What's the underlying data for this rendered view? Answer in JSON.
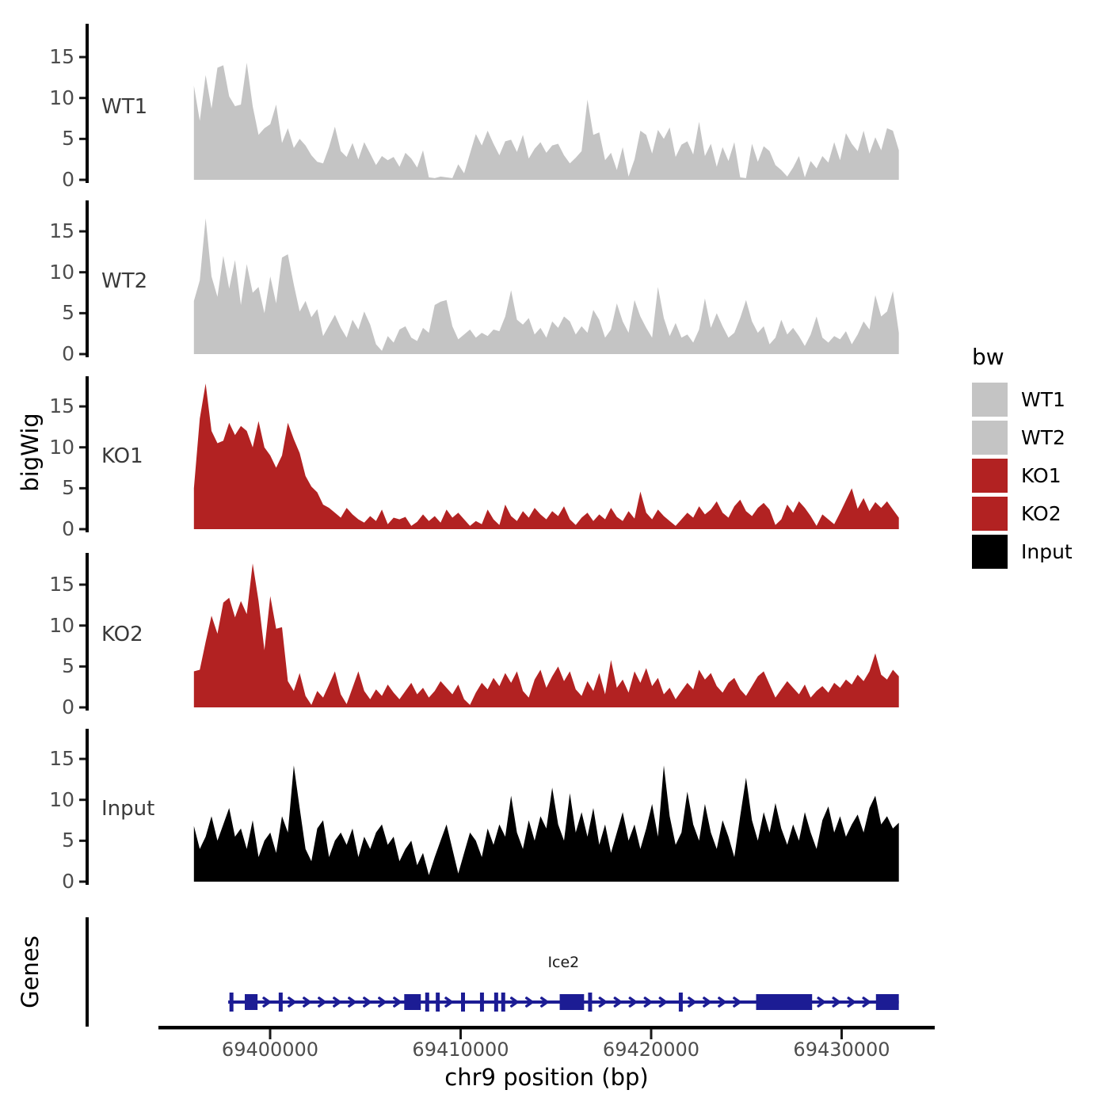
{
  "figure": {
    "y_axis_title": "bigWig",
    "genes_axis_title": "Genes",
    "x_axis_title": "chr9 position (bp)",
    "gene_label": "Ice2"
  },
  "legend": {
    "title": "bw",
    "entries": [
      {
        "label": "WT1",
        "color": "#C4C4C4"
      },
      {
        "label": "WT2",
        "color": "#C4C4C4"
      },
      {
        "label": "KO1",
        "color": "#B22222"
      },
      {
        "label": "KO2",
        "color": "#B22222"
      },
      {
        "label": "Input",
        "color": "#000000"
      }
    ]
  },
  "colors": {
    "gene_model": "#1C1C94",
    "axis_line": "#000000",
    "axis_text": "#4d4d4d",
    "track_label": "#3a3a3a"
  },
  "chart_data": {
    "type": "area",
    "title": "",
    "xlabel": "chr9 position (bp)",
    "ylabel": "bigWig",
    "x_domain_bp": [
      69396000,
      69433000
    ],
    "x_ticks_bp": [
      69400000,
      69410000,
      69420000,
      69430000
    ],
    "x_tick_labels": [
      "69400000",
      "69410000",
      "69420000",
      "69430000"
    ],
    "y_ticks": [
      0,
      5,
      10,
      15
    ],
    "ylim": [
      0,
      19
    ],
    "grid": false,
    "legend_position": "right",
    "tracks": [
      {
        "name": "WT1",
        "color": "#C4C4C4",
        "values": [
          11.5,
          7.2,
          12.8,
          8.7,
          13.7,
          14.0,
          10.2,
          9.0,
          9.2,
          14.3,
          9.0,
          5.5,
          6.3,
          6.8,
          9.2,
          4.5,
          6.3,
          3.9,
          5.0,
          4.2,
          3.0,
          2.2,
          2.0,
          4.0,
          6.5,
          3.5,
          2.8,
          4.5,
          2.5,
          4.6,
          3.2,
          1.8,
          2.9,
          2.4,
          2.8,
          1.6,
          3.3,
          2.6,
          1.5,
          3.6,
          0.3,
          0.2,
          0.4,
          0.3,
          0.2,
          1.9,
          0.8,
          3.2,
          5.6,
          4.2,
          6.0,
          4.4,
          3.0,
          4.7,
          4.9,
          3.4,
          5.5,
          2.6,
          3.8,
          4.6,
          3.3,
          4.2,
          4.4,
          3.0,
          2.0,
          2.7,
          3.5,
          9.8,
          5.5,
          5.8,
          2.4,
          3.3,
          1.2,
          4.0,
          0.4,
          2.5,
          6.0,
          5.5,
          3.2,
          6.1,
          5.0,
          6.4,
          2.8,
          4.3,
          4.7,
          3.1,
          7.1,
          2.9,
          4.4,
          1.6,
          4.0,
          2.3,
          4.6,
          0.3,
          0.2,
          4.4,
          2.2,
          4.1,
          3.5,
          1.8,
          1.2,
          0.4,
          1.5,
          2.9,
          0.3,
          2.3,
          1.4,
          2.9,
          2.1,
          4.6,
          2.4,
          5.7,
          4.4,
          3.5,
          6.0,
          3.2,
          5.2,
          3.6,
          6.3,
          6.0,
          3.6
        ]
      },
      {
        "name": "WT2",
        "color": "#C4C4C4",
        "values": [
          6.5,
          9.0,
          16.6,
          9.5,
          7.0,
          12.0,
          8.0,
          11.5,
          6.0,
          11.0,
          7.5,
          8.2,
          5.0,
          9.5,
          6.2,
          11.8,
          12.2,
          8.5,
          5.2,
          6.5,
          4.5,
          5.5,
          2.2,
          3.5,
          4.8,
          3.2,
          2.0,
          4.2,
          3.0,
          5.2,
          3.6,
          1.2,
          0.4,
          2.2,
          1.4,
          3.0,
          3.4,
          2.0,
          1.6,
          3.2,
          2.6,
          6.0,
          6.4,
          6.6,
          3.4,
          1.8,
          2.4,
          3.0,
          2.0,
          2.6,
          2.2,
          3.0,
          2.8,
          4.6,
          7.8,
          4.2,
          3.6,
          4.4,
          2.4,
          3.2,
          2.0,
          4.0,
          3.2,
          4.6,
          4.0,
          2.4,
          3.4,
          2.6,
          5.4,
          4.2,
          2.0,
          3.0,
          6.2,
          4.0,
          2.6,
          6.6,
          4.6,
          3.2,
          2.0,
          8.2,
          4.4,
          2.2,
          3.8,
          2.0,
          2.4,
          1.4,
          3.0,
          6.8,
          3.2,
          5.0,
          3.4,
          2.0,
          2.6,
          4.4,
          6.6,
          4.0,
          2.6,
          3.4,
          1.2,
          2.0,
          4.2,
          2.4,
          3.2,
          2.2,
          1.0,
          2.4,
          4.6,
          2.0,
          1.4,
          2.2,
          1.8,
          2.8,
          1.2,
          2.4,
          4.0,
          3.0,
          7.2,
          4.6,
          5.2,
          7.7,
          2.6
        ]
      },
      {
        "name": "KO1",
        "color": "#B22222",
        "values": [
          5.0,
          13.5,
          17.8,
          12.0,
          10.5,
          10.8,
          13.0,
          11.5,
          12.6,
          12.0,
          10.0,
          13.2,
          10.0,
          9.0,
          7.5,
          9.0,
          13.0,
          11.0,
          9.3,
          6.5,
          5.2,
          4.5,
          3.0,
          2.6,
          2.0,
          1.4,
          2.6,
          1.8,
          1.2,
          0.8,
          1.6,
          1.0,
          2.4,
          0.6,
          1.4,
          1.2,
          1.5,
          0.4,
          0.9,
          1.8,
          1.0,
          1.6,
          0.8,
          2.4,
          1.4,
          2.0,
          1.2,
          0.4,
          1.0,
          0.6,
          2.4,
          1.2,
          0.5,
          3.0,
          1.6,
          1.0,
          2.2,
          1.4,
          2.6,
          1.8,
          1.2,
          2.2,
          1.6,
          2.8,
          1.2,
          0.5,
          1.4,
          2.0,
          1.0,
          1.8,
          1.2,
          2.6,
          1.5,
          1.0,
          2.2,
          1.3,
          4.6,
          2.0,
          1.2,
          2.4,
          1.6,
          1.0,
          0.4,
          1.2,
          2.0,
          1.4,
          2.8,
          1.8,
          2.4,
          3.4,
          2.0,
          1.4,
          2.8,
          3.6,
          2.2,
          1.6,
          2.6,
          3.2,
          2.4,
          0.5,
          1.2,
          3.0,
          2.0,
          3.4,
          2.6,
          1.6,
          0.4,
          1.8,
          1.2,
          0.6,
          2.0,
          3.5,
          5.0,
          2.5,
          3.8,
          2.2,
          3.3,
          2.6,
          3.4,
          2.4,
          1.4
        ]
      },
      {
        "name": "KO2",
        "color": "#B22222",
        "values": [
          4.4,
          4.6,
          8.0,
          11.2,
          9.0,
          12.8,
          13.4,
          11.0,
          13.0,
          11.4,
          17.6,
          13.0,
          7.0,
          13.6,
          9.6,
          9.8,
          3.2,
          2.0,
          4.2,
          1.4,
          0.3,
          2.0,
          1.2,
          2.8,
          4.4,
          1.6,
          0.4,
          2.4,
          4.4,
          2.0,
          1.0,
          2.2,
          1.4,
          2.8,
          1.8,
          1.0,
          2.0,
          3.0,
          1.6,
          2.4,
          1.2,
          2.0,
          3.2,
          2.4,
          1.6,
          2.8,
          1.0,
          0.3,
          1.8,
          3.0,
          2.2,
          3.6,
          2.6,
          4.2,
          3.0,
          4.4,
          2.0,
          1.2,
          3.4,
          4.6,
          2.4,
          3.8,
          5.0,
          3.2,
          4.4,
          2.2,
          1.4,
          3.2,
          2.0,
          4.2,
          1.6,
          5.8,
          2.4,
          3.4,
          1.8,
          4.4,
          3.0,
          4.8,
          2.6,
          3.6,
          1.6,
          2.4,
          1.0,
          2.0,
          3.0,
          2.2,
          4.6,
          3.4,
          4.2,
          2.6,
          1.8,
          3.0,
          3.6,
          2.2,
          1.4,
          2.6,
          3.8,
          4.4,
          2.8,
          1.2,
          2.2,
          3.2,
          2.4,
          1.6,
          2.8,
          1.2,
          2.0,
          2.6,
          1.8,
          3.0,
          2.4,
          3.4,
          2.8,
          4.0,
          3.2,
          4.4,
          6.6,
          4.0,
          3.4,
          4.6,
          3.8
        ]
      },
      {
        "name": "Input",
        "color": "#000000",
        "values": [
          6.8,
          4.0,
          5.5,
          8.0,
          5.0,
          7.0,
          9.0,
          5.5,
          6.5,
          4.0,
          7.5,
          3.0,
          5.0,
          6.0,
          3.5,
          8.0,
          6.0,
          14.2,
          9.0,
          4.0,
          2.5,
          6.5,
          7.5,
          3.0,
          5.0,
          6.0,
          4.5,
          6.5,
          3.0,
          5.5,
          4.0,
          6.0,
          7.0,
          4.5,
          5.5,
          2.5,
          4.0,
          5.0,
          2.0,
          3.5,
          0.8,
          3.0,
          5.0,
          7.0,
          4.0,
          1.0,
          3.5,
          6.0,
          5.0,
          3.0,
          6.5,
          4.5,
          7.0,
          5.5,
          10.5,
          6.0,
          4.0,
          7.5,
          5.0,
          8.0,
          6.5,
          11.5,
          7.0,
          5.0,
          10.8,
          6.0,
          8.5,
          5.5,
          9.0,
          4.5,
          7.0,
          3.5,
          6.0,
          8.5,
          5.0,
          7.0,
          4.0,
          6.5,
          9.5,
          5.5,
          14.2,
          8.0,
          4.5,
          6.0,
          11.0,
          7.0,
          5.0,
          9.5,
          6.0,
          4.0,
          7.5,
          5.5,
          3.0,
          8.0,
          12.7,
          7.5,
          5.0,
          8.5,
          6.0,
          9.6,
          6.5,
          4.5,
          7.0,
          5.0,
          8.5,
          6.0,
          4.0,
          7.5,
          9.2,
          6.0,
          8.0,
          5.5,
          7.0,
          8.2,
          6.0,
          9.0,
          10.5,
          7.0,
          8.0,
          6.5,
          7.2
        ]
      }
    ],
    "genes_track": {
      "label": "Genes",
      "gene": {
        "name": "Ice2",
        "strand": "+",
        "start_bp": 69397800,
        "end_bp": 69433000,
        "label_bp": 69415400,
        "exons_bp": [
          [
            69397800,
            69398140
          ],
          [
            69398670,
            69399340
          ],
          [
            69400450,
            69400660
          ],
          [
            69407040,
            69407910
          ],
          [
            69408120,
            69408370
          ],
          [
            69408700,
            69408900
          ],
          [
            69409940,
            69410310
          ],
          [
            69411020,
            69411220
          ],
          [
            69411760,
            69411970
          ],
          [
            69412130,
            69412340
          ],
          [
            69415200,
            69416480
          ],
          [
            69416610,
            69416980
          ],
          [
            69421450,
            69421660
          ],
          [
            69425510,
            69428450
          ],
          [
            69431800,
            69433000
          ]
        ]
      }
    }
  }
}
